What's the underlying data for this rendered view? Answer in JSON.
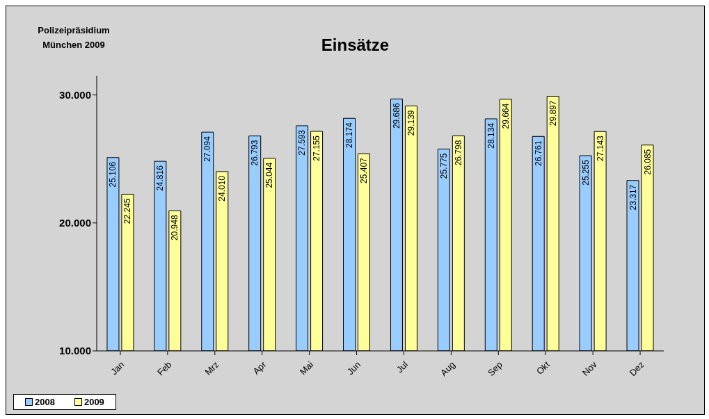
{
  "chart_data": {
    "type": "bar",
    "title": "Einsätze",
    "annotations": [
      "Polizeipräsidium München 2009"
    ],
    "categories": [
      "Jan",
      "Feb",
      "Mrz",
      "Apr",
      "Mai",
      "Jun",
      "Jul",
      "Aug",
      "Sep",
      "Okt",
      "Nov",
      "Dez"
    ],
    "series": [
      {
        "name": "2008",
        "color": "#99ccff",
        "values": [
          25106,
          24816,
          27094,
          26793,
          27593,
          28174,
          29686,
          25775,
          28134,
          26761,
          25255,
          23317
        ],
        "value_labels": [
          "25.106",
          "24.816",
          "27.094",
          "26.793",
          "27.593",
          "28.174",
          "29.686",
          "25.775",
          "28.134",
          "26.761",
          "25.255",
          "23.317"
        ]
      },
      {
        "name": "2009",
        "color": "#ffff99",
        "values": [
          22245,
          20948,
          24010,
          25044,
          27155,
          25407,
          29139,
          26798,
          29664,
          29897,
          27143,
          26085
        ],
        "value_labels": [
          "22.245",
          "20.948",
          "24.010",
          "25.044",
          "27.155",
          "25.407",
          "29.139",
          "26.798",
          "29.664",
          "29.897",
          "27.143",
          "26.085"
        ]
      }
    ],
    "ylim": [
      10000,
      31500
    ],
    "yticks": [
      {
        "value": 10000,
        "label": "10.000"
      },
      {
        "value": 20000,
        "label": "20.000"
      },
      {
        "value": 30000,
        "label": "30.000"
      }
    ],
    "grid": false,
    "legend": "bottom"
  }
}
